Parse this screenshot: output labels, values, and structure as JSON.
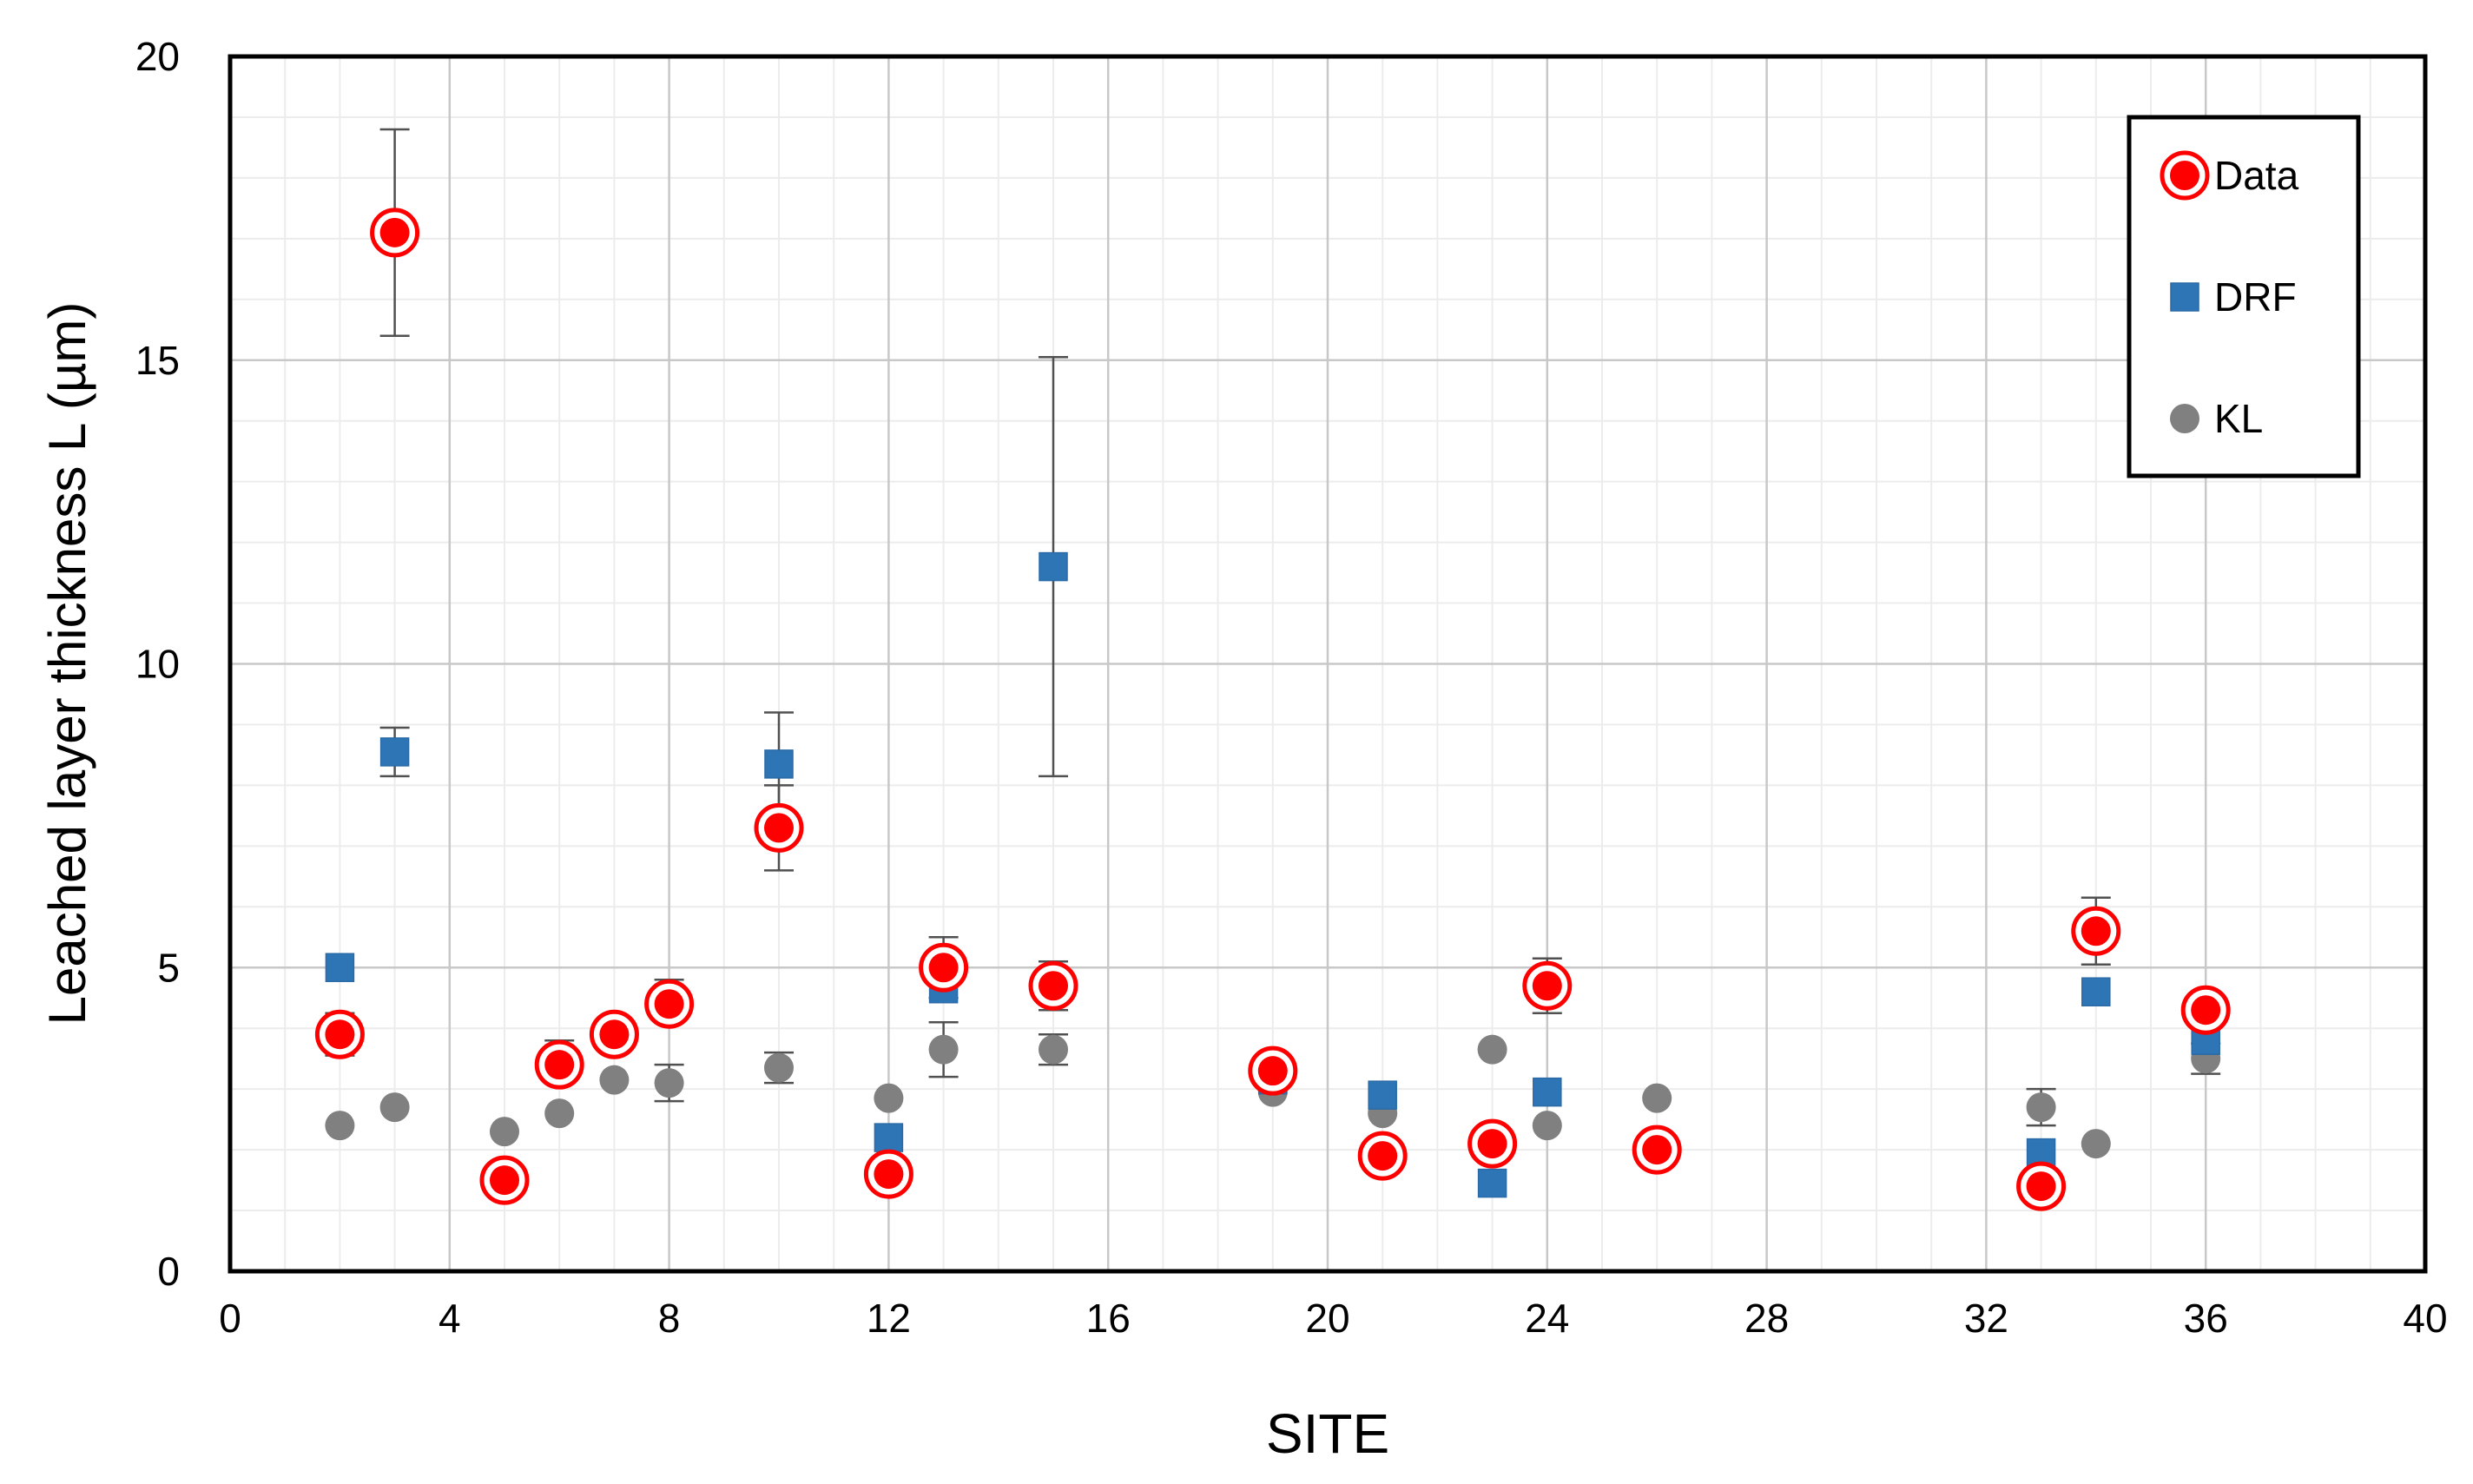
{
  "chart_data": {
    "type": "scatter",
    "title": "",
    "xlabel": "SITE",
    "ylabel": "Leached layer thickness L (µm)",
    "xlim": [
      0,
      40
    ],
    "ylim": [
      0,
      20
    ],
    "x_major_ticks": [
      0,
      4,
      8,
      12,
      16,
      20,
      24,
      28,
      32,
      36,
      40
    ],
    "x_tick_labels": [
      "0",
      "4",
      "8",
      "12",
      "16",
      "20",
      "24",
      "28",
      "32",
      "36",
      "40"
    ],
    "y_major_ticks": [
      0,
      5,
      10,
      15,
      20
    ],
    "y_tick_labels": [
      "0",
      "5",
      "10",
      "15",
      "20"
    ],
    "x_minor_step": 1,
    "y_minor_step": 1,
    "grid": true,
    "legend_position": "top-right",
    "series": [
      {
        "name": "Data",
        "marker": "circle-ring",
        "color": "#ff0000",
        "points": [
          {
            "x": 2,
            "y": 3.9,
            "err": 0.35
          },
          {
            "x": 3,
            "y": 17.1,
            "err": 1.7
          },
          {
            "x": 5,
            "y": 1.5,
            "err": 0
          },
          {
            "x": 6,
            "y": 3.4,
            "err": 0
          },
          {
            "x": 7,
            "y": 3.9,
            "err": 0.3
          },
          {
            "x": 8,
            "y": 4.4,
            "err": 0.3
          },
          {
            "x": 10,
            "y": 7.3,
            "err": 0.7
          },
          {
            "x": 12,
            "y": 1.6,
            "err": 0
          },
          {
            "x": 13,
            "y": 5.0,
            "err": 0.5
          },
          {
            "x": 15,
            "y": 4.7,
            "err": 0.4
          },
          {
            "x": 19,
            "y": 3.3,
            "err": 0.2
          },
          {
            "x": 21,
            "y": 1.9,
            "err": 0
          },
          {
            "x": 23,
            "y": 2.1,
            "err": 0
          },
          {
            "x": 24,
            "y": 4.7,
            "err": 0.45
          },
          {
            "x": 26,
            "y": 2.0,
            "err": 0
          },
          {
            "x": 33,
            "y": 1.4,
            "err": 0
          },
          {
            "x": 34,
            "y": 5.6,
            "err": 0.55
          },
          {
            "x": 36,
            "y": 4.3,
            "err": 0.3
          }
        ]
      },
      {
        "name": "DRF",
        "marker": "square",
        "color": "#2e75b6",
        "points": [
          {
            "x": 2,
            "y": 5.0,
            "err": 0
          },
          {
            "x": 3,
            "y": 8.55,
            "err": 0.4
          },
          {
            "x": 5,
            "y": 1.5,
            "err": 0
          },
          {
            "x": 6,
            "y": 3.5,
            "err": 0.3
          },
          {
            "x": 7,
            "y": 3.9,
            "err": 0
          },
          {
            "x": 8,
            "y": 4.5,
            "err": 0.3
          },
          {
            "x": 10,
            "y": 8.35,
            "err": 0.85
          },
          {
            "x": 12,
            "y": 2.2,
            "err": 0
          },
          {
            "x": 13,
            "y": 4.65,
            "err": 0
          },
          {
            "x": 15,
            "y": 11.6,
            "err": 3.45
          },
          {
            "x": 19,
            "y": 3.15,
            "err": 0
          },
          {
            "x": 21,
            "y": 2.9,
            "err": 0
          },
          {
            "x": 23,
            "y": 1.45,
            "err": 0
          },
          {
            "x": 24,
            "y": 2.95,
            "err": 0
          },
          {
            "x": 26,
            "y": 1.95,
            "err": 0
          },
          {
            "x": 33,
            "y": 1.95,
            "err": 0
          },
          {
            "x": 34,
            "y": 4.6,
            "err": 0
          },
          {
            "x": 36,
            "y": 3.8,
            "err": 0
          }
        ]
      },
      {
        "name": "KL",
        "marker": "circle",
        "color": "#808080",
        "points": [
          {
            "x": 2,
            "y": 2.4,
            "err": 0
          },
          {
            "x": 3,
            "y": 2.7,
            "err": 0
          },
          {
            "x": 5,
            "y": 2.3,
            "err": 0
          },
          {
            "x": 6,
            "y": 2.6,
            "err": 0
          },
          {
            "x": 7,
            "y": 3.15,
            "err": 0
          },
          {
            "x": 8,
            "y": 3.1,
            "err": 0.3
          },
          {
            "x": 10,
            "y": 3.35,
            "err": 0.25
          },
          {
            "x": 12,
            "y": 2.85,
            "err": 0
          },
          {
            "x": 13,
            "y": 3.65,
            "err": 0.45
          },
          {
            "x": 15,
            "y": 3.65,
            "err": 0.25
          },
          {
            "x": 19,
            "y": 2.95,
            "err": 0
          },
          {
            "x": 21,
            "y": 2.6,
            "err": 0
          },
          {
            "x": 23,
            "y": 3.65,
            "err": 0
          },
          {
            "x": 24,
            "y": 2.4,
            "err": 0
          },
          {
            "x": 26,
            "y": 2.85,
            "err": 0
          },
          {
            "x": 33,
            "y": 2.7,
            "err": 0.3
          },
          {
            "x": 34,
            "y": 2.1,
            "err": 0
          },
          {
            "x": 36,
            "y": 3.5,
            "err": 0.25
          }
        ]
      }
    ]
  }
}
